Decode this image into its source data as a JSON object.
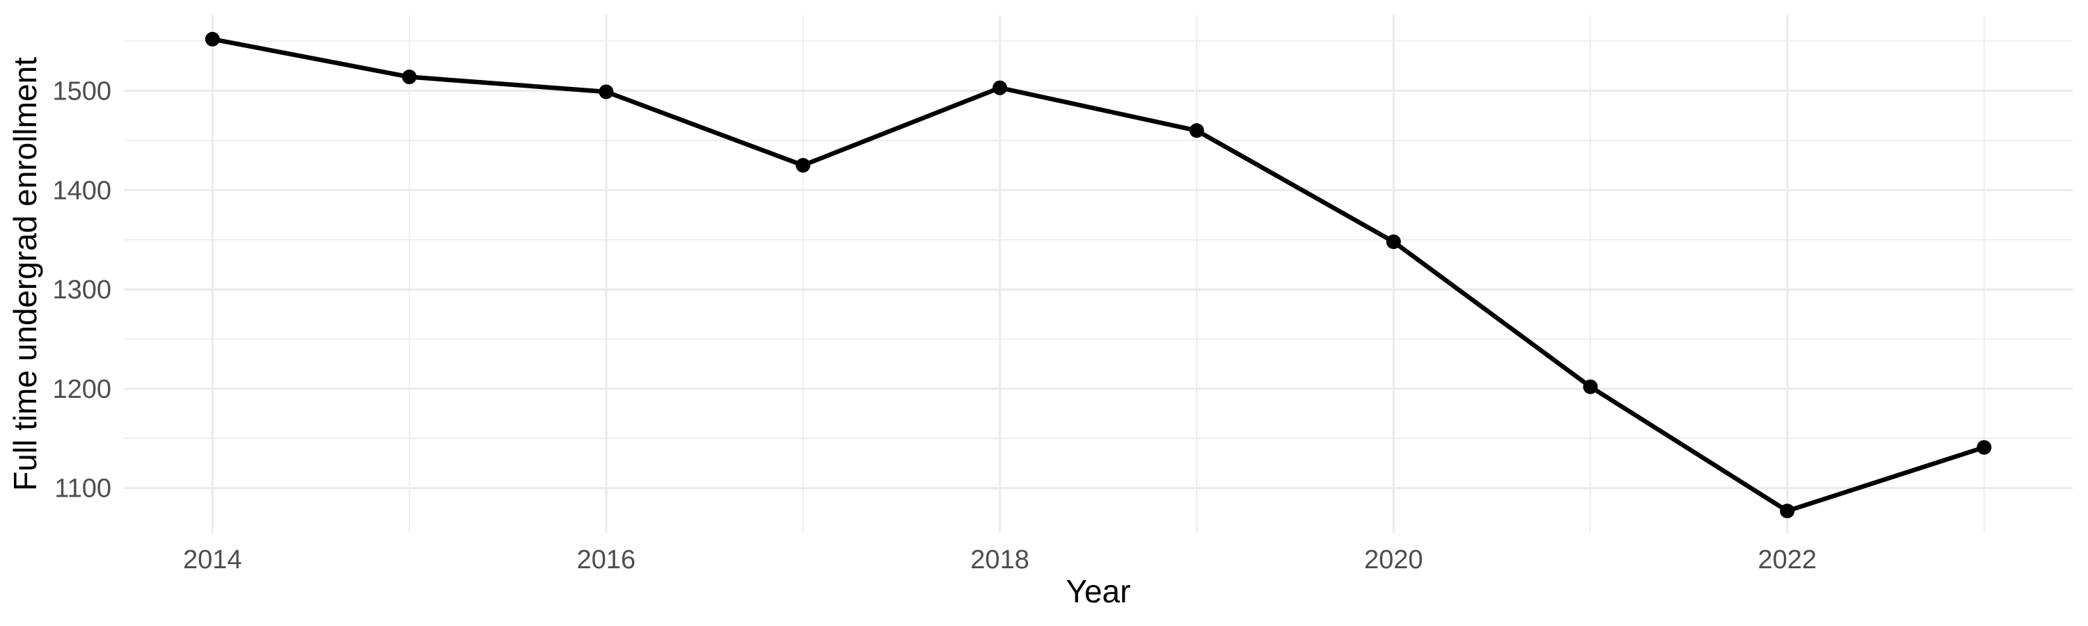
{
  "chart_data": {
    "type": "line",
    "title": "",
    "xlabel": "Year",
    "ylabel": "Full time undergrad enrollment",
    "x": [
      2014,
      2015,
      2016,
      2017,
      2018,
      2019,
      2020,
      2021,
      2022,
      2023
    ],
    "series": [
      {
        "name": "Full time undergrad enrollment",
        "values": [
          1552,
          1514,
          1499,
          1425,
          1503,
          1460,
          1348,
          1202,
          1077,
          1141
        ]
      }
    ],
    "x_major_ticks": [
      2014,
      2016,
      2018,
      2020,
      2022
    ],
    "x_minor_ticks": [
      2015,
      2017,
      2019,
      2021,
      2023
    ],
    "y_major_ticks": [
      1100,
      1200,
      1300,
      1400,
      1500
    ],
    "y_minor_ticks": [
      1150,
      1250,
      1350,
      1450,
      1550
    ],
    "xlim": [
      2013.55,
      2023.45
    ],
    "ylim": [
      1055,
      1576
    ],
    "grid": "major+minor",
    "legend": "none",
    "marker": "filled-circle",
    "colors": {
      "line": "#000000",
      "point": "#000000",
      "grid": "#EBEBEB",
      "tick_label": "#4D4D4D",
      "axis_title": "#000000",
      "background": "#FFFFFF"
    }
  }
}
